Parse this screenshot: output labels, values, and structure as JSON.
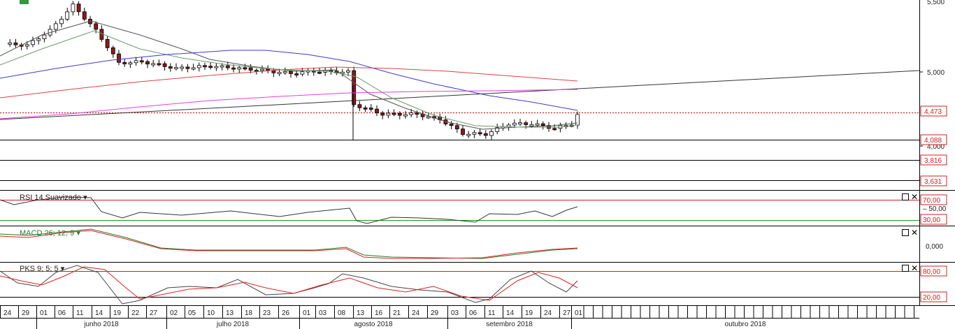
{
  "chart_data": {
    "type": "candlestick",
    "price_axis": {
      "ticks": [
        "5,000",
        "4,000"
      ],
      "partial_top_tick": "5,500",
      "price_levels": [
        "4,473",
        "4,088",
        "3,816",
        "3,631"
      ],
      "current_price_label": "4,473"
    },
    "panes": [
      {
        "name": "RSI",
        "label": "RSI 14 Suavizado",
        "levels": [
          "70,00",
          "50,00",
          "30,00"
        ],
        "level_values": [
          70,
          50,
          30
        ]
      },
      {
        "name": "MACD",
        "label": "MACD 26; 12; 9",
        "levels": [
          "0,000"
        ]
      },
      {
        "name": "PKS",
        "label": "PKS 9; 5; 5",
        "levels": [
          "80,00",
          "20,00"
        ],
        "level_values": [
          80,
          20
        ]
      }
    ],
    "x_axis": {
      "day_ticks": [
        "24",
        "29",
        "01",
        "06",
        "11",
        "14",
        "19",
        "22",
        "27",
        "02",
        "05",
        "10",
        "13",
        "18",
        "23",
        "26",
        "01",
        "03",
        "08",
        "13",
        "16",
        "21",
        "24",
        "29",
        "03",
        "06",
        "11",
        "14",
        "19",
        "24",
        "27",
        "01"
      ],
      "months": [
        "junho 2018",
        "julho 2018",
        "agosto 2018",
        "setembro 2018",
        "outubro 2018"
      ]
    },
    "colors": {
      "up": "#ffffff",
      "down": "#8b1a1a",
      "sma_short": "#555555",
      "sma_mid": "#6a9a6a",
      "sma_blue": "#3a3ad0",
      "sma_red": "#e04040",
      "sma_magenta": "#e040e0",
      "level_red": "#d02020",
      "level_green": "#1a9a1a",
      "rsi_line": "#333333",
      "macd_line": "#2a7a2a",
      "macd_signal": "#e02020",
      "pks_k": "#444444",
      "pks_d": "#e02020"
    }
  },
  "controls": {
    "rsi_close": "✕",
    "macd_close": "✕",
    "pks_close": "✕"
  }
}
